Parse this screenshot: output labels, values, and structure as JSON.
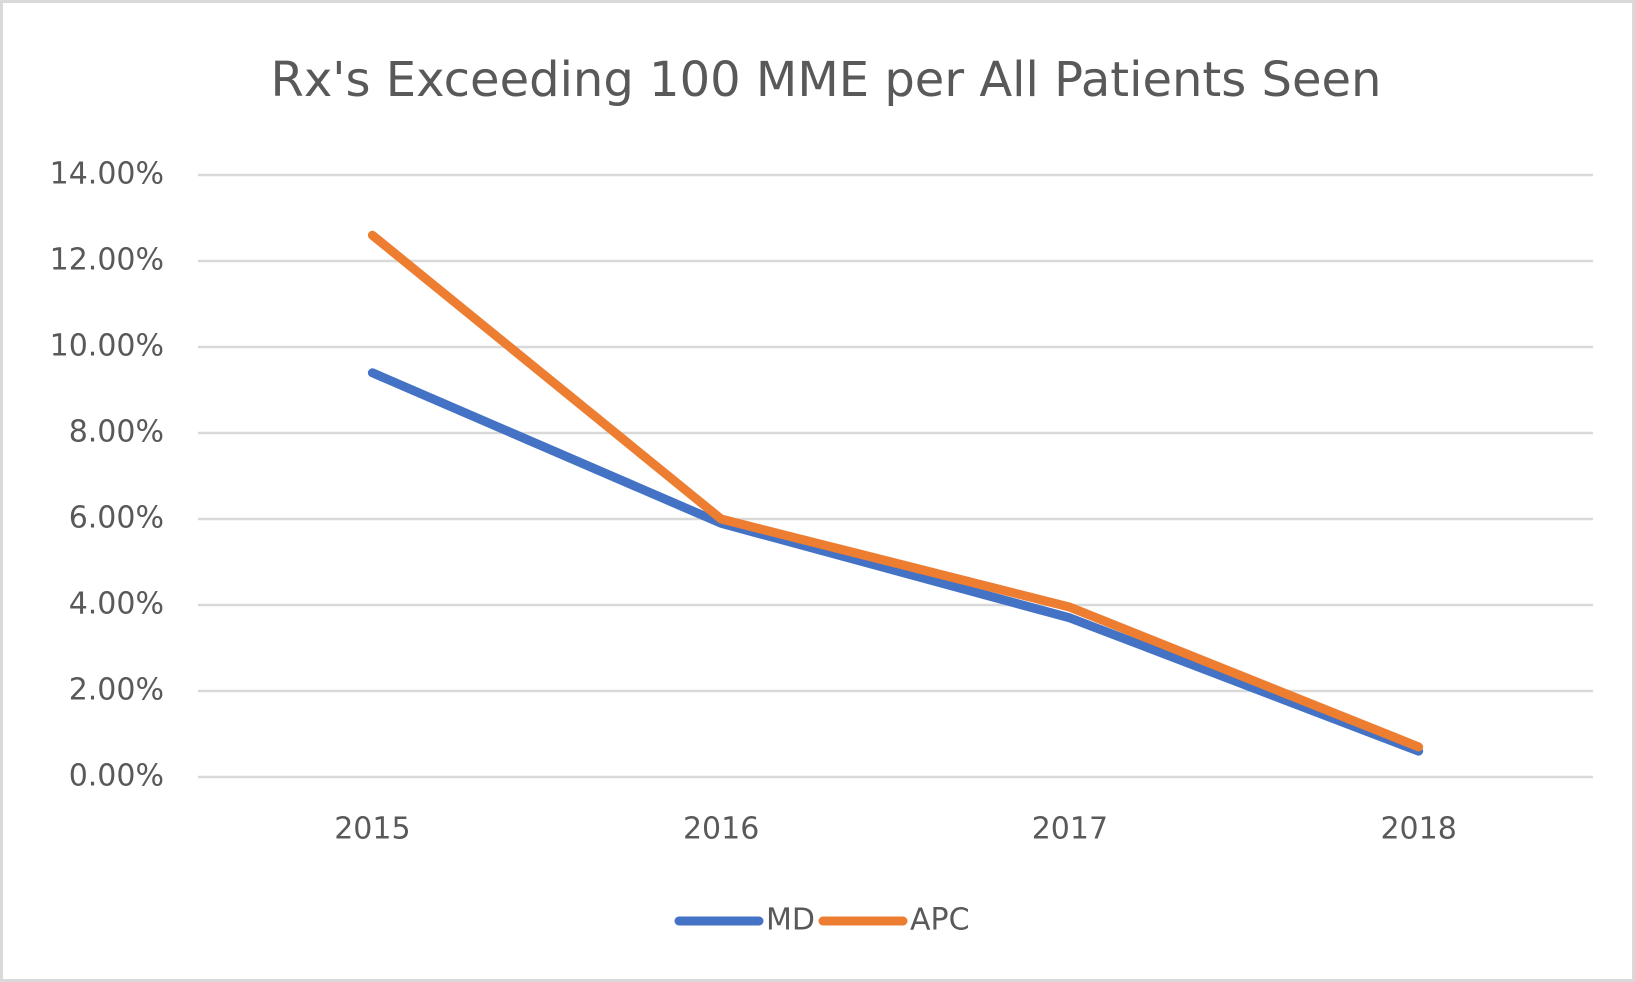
{
  "chart_data": {
    "type": "line",
    "title": "Rx's Exceeding 100 MME per All Patients Seen",
    "categories": [
      "2015",
      "2016",
      "2017",
      "2018"
    ],
    "series": [
      {
        "name": "MD",
        "color": "#4472c4",
        "values": [
          9.4,
          5.9,
          3.7,
          0.6
        ]
      },
      {
        "name": "APC",
        "color": "#ed7d31",
        "values": [
          12.6,
          6.0,
          3.95,
          0.7
        ]
      }
    ],
    "ylim": [
      0,
      14
    ],
    "yticks": [
      {
        "value": 0,
        "label": "0.00%"
      },
      {
        "value": 2,
        "label": "2.00%"
      },
      {
        "value": 4,
        "label": "4.00%"
      },
      {
        "value": 6,
        "label": "6.00%"
      },
      {
        "value": 8,
        "label": "8.00%"
      },
      {
        "value": 10,
        "label": "10.00%"
      },
      {
        "value": 12,
        "label": "12.00%"
      },
      {
        "value": 14,
        "label": "14.00%"
      }
    ],
    "grid": true,
    "legend": "bottom"
  }
}
